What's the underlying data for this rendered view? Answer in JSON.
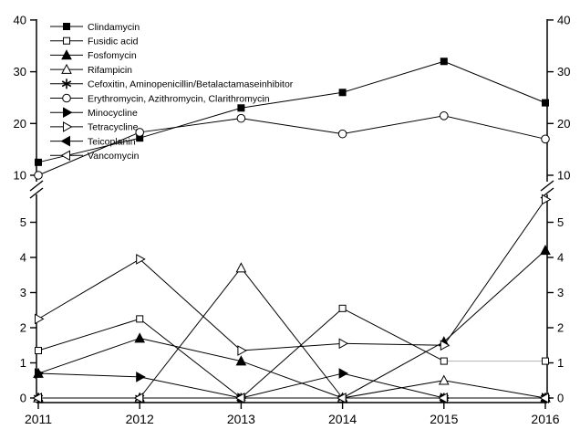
{
  "window": {
    "background": "#ffffff"
  },
  "chart_data": {
    "type": "line",
    "title": "",
    "xlabel": "",
    "ylabel": "",
    "grid": false,
    "legend_position": "top-left-inside",
    "x_labels": [
      "2011",
      "2012",
      "2013",
      "2014",
      "2015",
      "2016"
    ],
    "y_axis": {
      "broken": true,
      "upper_ticks": [
        10,
        20,
        30,
        40
      ],
      "lower_ticks": [
        0,
        1,
        2,
        3,
        4,
        5
      ],
      "upper_range": [
        10,
        40
      ],
      "lower_range": [
        0,
        5.9
      ],
      "mirrored_right_axis": true
    },
    "colors": {
      "line": "#000000",
      "gray_segment": "#b3b3b3",
      "text": "#000000",
      "background": "#ffffff"
    },
    "series": [
      {
        "name": "Clindamycin",
        "marker": "filled-square",
        "values": [
          12.5,
          17.2,
          23.0,
          26.0,
          32.0,
          24.0
        ]
      },
      {
        "name": "Fusidic acid",
        "marker": "open-square",
        "values": [
          1.35,
          2.25,
          0,
          2.55,
          1.05,
          1.05
        ],
        "gray_segments": [
          4
        ]
      },
      {
        "name": "Fosfomycin",
        "marker": "filled-triangle-up",
        "values": [
          0.7,
          1.7,
          1.05,
          0,
          1.6,
          4.2
        ]
      },
      {
        "name": "Rifampicin",
        "marker": "open-triangle-up",
        "values": [
          0,
          0,
          3.7,
          0,
          0.5,
          0
        ]
      },
      {
        "name": "Cefoxitin, Aminopenicillin/Betalactamaseinhibitor",
        "marker": "asterisk",
        "values": [
          0,
          0,
          0,
          0,
          0,
          0
        ]
      },
      {
        "name": "Erythromycin, Azithromycin, Clarithromycin",
        "marker": "open-circle",
        "values": [
          10.0,
          18.3,
          21.0,
          18.0,
          21.5,
          17.0
        ]
      },
      {
        "name": "Minocycline",
        "marker": "filled-triangle-right",
        "values": [
          0.7,
          0.6,
          0,
          0.7,
          0,
          0
        ]
      },
      {
        "name": "Tetracycline",
        "marker": "open-triangle-right",
        "values": [
          2.25,
          3.95,
          1.35,
          1.55,
          1.5,
          5.65
        ]
      },
      {
        "name": "Teicoplanin",
        "marker": "filled-triangle-left",
        "values": [
          0,
          0,
          0,
          0,
          0,
          0
        ]
      },
      {
        "name": "Vancomycin",
        "marker": "open-triangle-left",
        "values": [
          0,
          0,
          0,
          0,
          0,
          0
        ]
      }
    ]
  }
}
